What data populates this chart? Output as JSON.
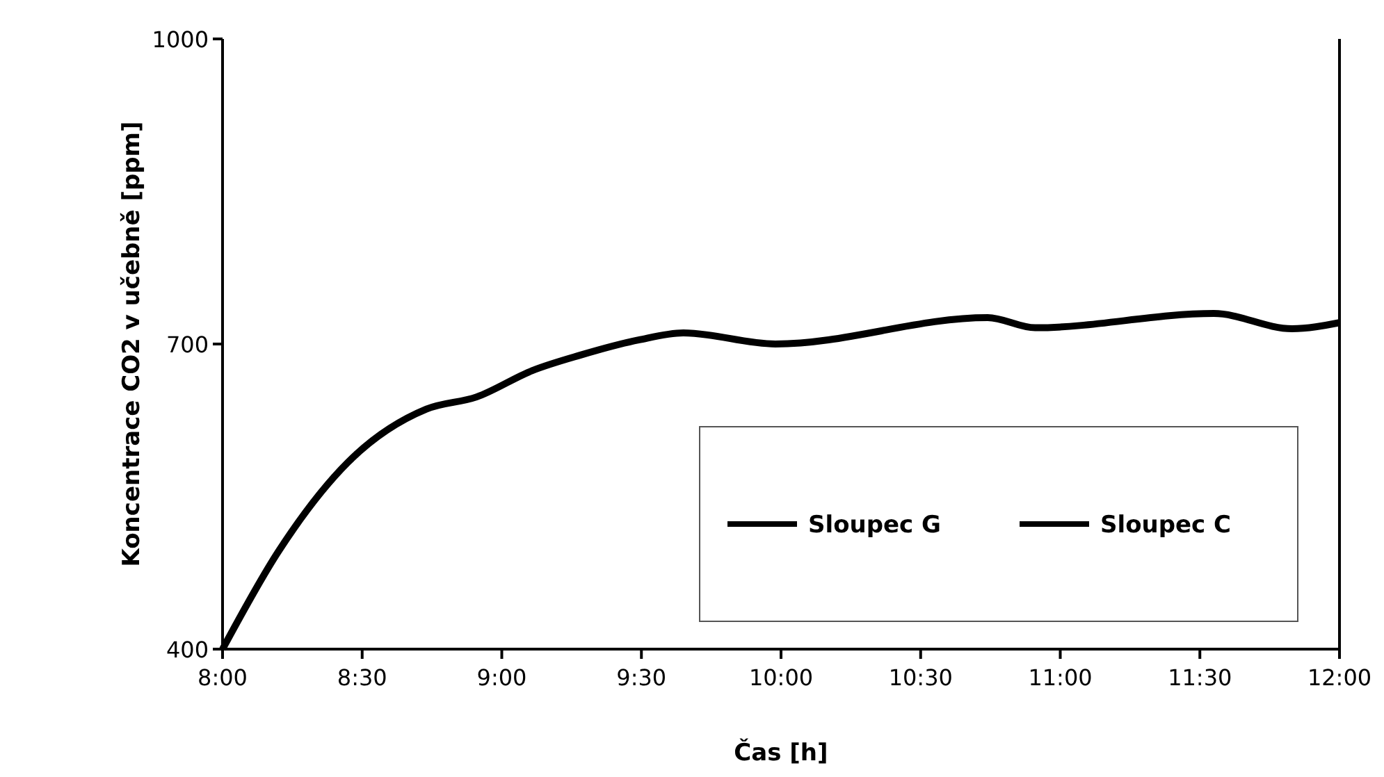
{
  "chart_data": {
    "type": "line",
    "xlabel": "Čas [h]",
    "ylabel": "Koncentrace CO2 v učebně [ppm]",
    "xlim": [
      8,
      12
    ],
    "xticks": [
      {
        "value": 8,
        "label": "8:00"
      },
      {
        "value": 8.5,
        "label": "8:30"
      },
      {
        "value": 9,
        "label": "9:00"
      },
      {
        "value": 9.5,
        "label": "9:30"
      },
      {
        "value": 10,
        "label": "10:00"
      },
      {
        "value": 10.5,
        "label": "10:30"
      },
      {
        "value": 11,
        "label": "11:00"
      },
      {
        "value": 11.5,
        "label": "11:30"
      },
      {
        "value": 12,
        "label": "12:00"
      }
    ],
    "ylim": [
      400,
      1000
    ],
    "yticks": [
      400,
      700,
      1000
    ],
    "grid": false,
    "legend": "bottom right",
    "marker": "none",
    "line_style": "solid",
    "x": [
      8,
      8.2,
      8.45,
      8.73,
      8.91,
      9.11,
      9.28,
      9.49,
      9.65,
      9.98,
      10.74,
      10.91,
      11.55,
      11.83,
      12
    ],
    "series": [
      {
        "name": "Sloupec G",
        "color": "#000000",
        "values": [
          400,
          496,
          584,
          636,
          648,
          674,
          689,
          704,
          711,
          700,
          726,
          716,
          730,
          715,
          721
        ]
      },
      {
        "name": "Sloupec C",
        "color": "#000000",
        "values": [
          null,
          null,
          null,
          null,
          null,
          null,
          null,
          null,
          null,
          null,
          null,
          null,
          null,
          null,
          null
        ]
      }
    ]
  }
}
